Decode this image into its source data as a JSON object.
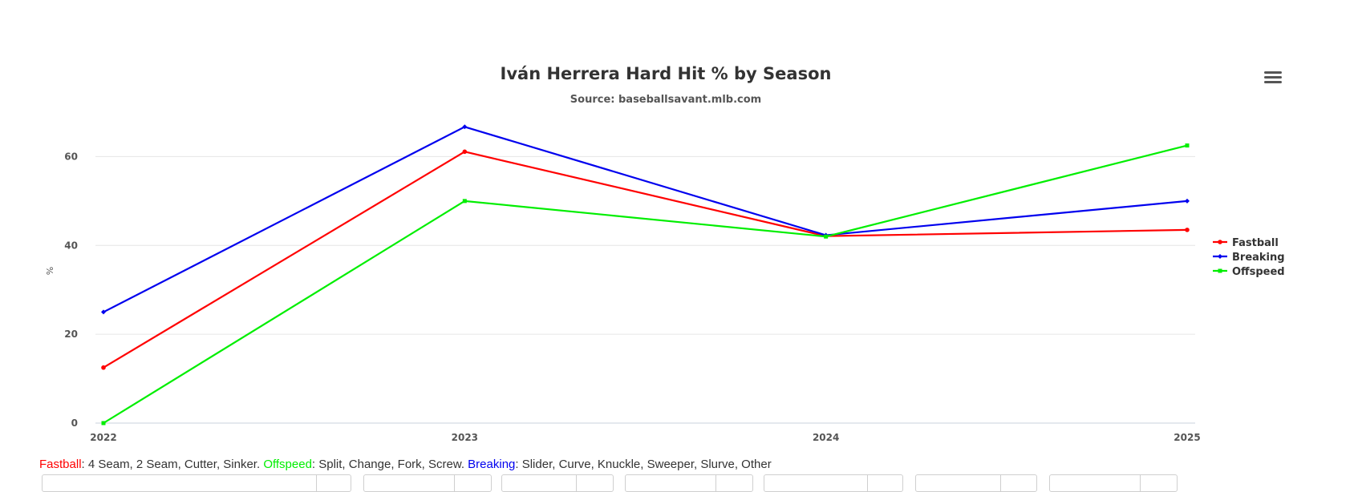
{
  "chart_data": {
    "type": "line",
    "title": "Iván Herrera Hard Hit % by Season",
    "subtitle": "Source: baseballsavant.mlb.com",
    "ylabel": "%",
    "xlabel": "",
    "x": [
      "2022",
      "2023",
      "2024",
      "2025"
    ],
    "ylim": [
      0,
      70
    ],
    "yticks": [
      0,
      20,
      40,
      60
    ],
    "grid": true,
    "legend_position": "right",
    "series": [
      {
        "name": "Fastball",
        "values": [
          12.5,
          61.1,
          42.1,
          43.5
        ],
        "color": "#ff0000"
      },
      {
        "name": "Breaking",
        "values": [
          25.0,
          66.7,
          42.3,
          50.0
        ],
        "color": "#0000ee"
      },
      {
        "name": "Offspeed",
        "values": [
          0.0,
          50.0,
          42.0,
          62.5
        ],
        "color": "#00ee00"
      }
    ]
  },
  "note": {
    "fastball_label": "Fastball",
    "fastball_text": ": 4 Seam, 2 Seam, Cutter, Sinker. ",
    "offspeed_label": "Offspeed",
    "offspeed_text": ": Split, Change, Fork, Screw. ",
    "breaking_label": "Breaking",
    "breaking_text": ": Slider, Curve, Knuckle, Sweeper, Slurve, Other",
    "colors": {
      "fastball": "#ff0000",
      "offspeed": "#00ee00",
      "breaking": "#0000ee"
    }
  },
  "menu": {
    "icon": "hamburger-menu-icon"
  }
}
